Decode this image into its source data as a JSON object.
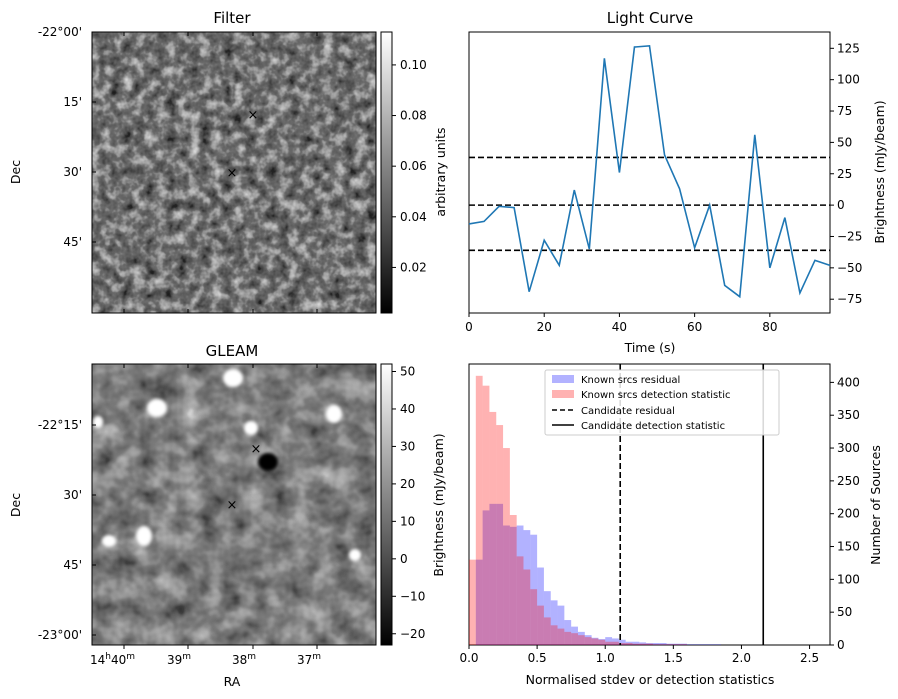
{
  "panels": {
    "filter": {
      "title": "Filter",
      "ylabel": "Dec",
      "dec_ticks": [
        "-22°00'",
        "15'",
        "30'",
        "45'"
      ],
      "colorbar": {
        "label": "arbitrary units",
        "ticks": [
          "0.10",
          "0.08",
          "0.06",
          "0.04",
          "0.02"
        ],
        "tick_values": [
          0.1,
          0.08,
          0.06,
          0.04,
          0.02
        ],
        "range": [
          0.002,
          0.113
        ]
      },
      "markers": [
        {
          "color": "#0000ff",
          "symbol": "×"
        },
        {
          "color": "#ff0000",
          "symbol": "×"
        }
      ]
    },
    "gleam": {
      "title": "GLEAM",
      "ylabel": "Dec",
      "xlabel": "RA",
      "dec_ticks": [
        "-22°15'",
        "30'",
        "45'",
        "-23°00'"
      ],
      "ra_ticks": [
        {
          "main": "14",
          "sup1": "h",
          "mid": "40",
          "sup2": "m"
        },
        {
          "main": "39",
          "sup1": "",
          "mid": "",
          "sup2": "m"
        },
        {
          "main": "38",
          "sup1": "",
          "mid": "",
          "sup2": "m"
        },
        {
          "main": "37",
          "sup1": "",
          "mid": "",
          "sup2": "m"
        }
      ],
      "colorbar": {
        "label": "Brightness (mJy/beam)",
        "ticks": [
          "50",
          "40",
          "30",
          "20",
          "10",
          "0",
          "−10",
          "−20"
        ],
        "tick_values": [
          50,
          40,
          30,
          20,
          10,
          0,
          -10,
          -20
        ],
        "range": [
          -23,
          52
        ]
      },
      "markers": [
        {
          "color": "#0000ff",
          "symbol": "×"
        },
        {
          "color": "#ff0000",
          "symbol": "×"
        }
      ]
    }
  },
  "chart_data": [
    {
      "type": "line",
      "title": "Light Curve",
      "xlabel": "Time (s)",
      "ylabel": "Brightness (mJy/beam)",
      "xlim": [
        0,
        96
      ],
      "ylim": [
        -86,
        138
      ],
      "xticks": [
        0,
        20,
        40,
        60,
        80
      ],
      "yticks": [
        125,
        100,
        75,
        50,
        25,
        0,
        -25,
        -50,
        -75
      ],
      "ytick_labels": [
        "125",
        "100",
        "75",
        "50",
        "25",
        "0",
        "−25",
        "−50",
        "−75"
      ],
      "series": [
        {
          "name": "light curve",
          "color": "#1f77b4",
          "x": [
            0,
            4,
            8,
            12,
            16,
            20,
            24,
            28,
            32,
            36,
            40,
            44,
            48,
            52,
            56,
            60,
            64,
            68,
            72,
            76,
            80,
            84,
            88,
            92,
            96
          ],
          "y": [
            -15,
            -13,
            -1,
            -2,
            -69,
            -28,
            -48,
            12,
            -35,
            117,
            26,
            126,
            127,
            40,
            13,
            -34,
            0,
            -64,
            -73,
            56,
            -50,
            -10,
            -70,
            -44,
            -48
          ]
        }
      ],
      "hlines": [
        {
          "y": 38,
          "style": "dashed",
          "color": "#000000"
        },
        {
          "y": 0,
          "style": "dashed",
          "color": "#000000"
        },
        {
          "y": -36,
          "style": "dashed",
          "color": "#000000"
        }
      ]
    },
    {
      "type": "histogram",
      "xlabel": "Normalised stdev or detection statistics",
      "ylabel": "Number of Sources",
      "xlim": [
        0,
        2.65
      ],
      "ylim": [
        0,
        428
      ],
      "xticks": [
        0.0,
        0.5,
        1.0,
        1.5,
        2.0,
        2.5
      ],
      "xtick_labels": [
        "0.0",
        "0.5",
        "1.0",
        "1.5",
        "2.0",
        "2.5"
      ],
      "yticks": [
        0,
        50,
        100,
        150,
        200,
        250,
        300,
        350,
        400
      ],
      "bin_start": 0.0,
      "bin_width": 0.05,
      "series": [
        {
          "name": "Known srcs residual",
          "color": "#0000ff",
          "alpha": 0.3,
          "values": [
            0,
            130,
            205,
            215,
            215,
            182,
            180,
            182,
            175,
            168,
            118,
            82,
            68,
            60,
            38,
            28,
            20,
            15,
            11,
            9,
            12,
            10,
            8,
            5,
            5,
            4,
            3,
            3,
            3,
            2,
            2,
            2,
            1,
            1,
            1,
            1,
            1,
            0,
            0,
            0,
            0,
            0,
            0,
            0,
            0,
            0,
            0,
            0,
            0,
            0
          ]
        },
        {
          "name": "Known srcs detection statistic",
          "color": "#ff0000",
          "alpha": 0.3,
          "values": [
            130,
            410,
            395,
            355,
            335,
            300,
            198,
            135,
            115,
            85,
            60,
            42,
            30,
            25,
            20,
            18,
            15,
            12,
            10,
            8,
            5,
            5,
            3,
            3,
            2,
            2,
            2,
            1,
            1,
            1,
            1,
            1,
            0,
            0,
            0,
            0,
            0,
            0,
            0,
            0,
            0,
            0,
            0,
            0,
            0,
            0,
            0,
            0,
            0,
            0
          ]
        }
      ],
      "vlines": [
        {
          "name": "Candidate residual",
          "x": 1.11,
          "style": "dashed",
          "color": "#000000"
        },
        {
          "name": "Candidate detection statistic",
          "x": 2.16,
          "style": "solid",
          "color": "#000000"
        }
      ],
      "legend_position": "upper center"
    }
  ]
}
